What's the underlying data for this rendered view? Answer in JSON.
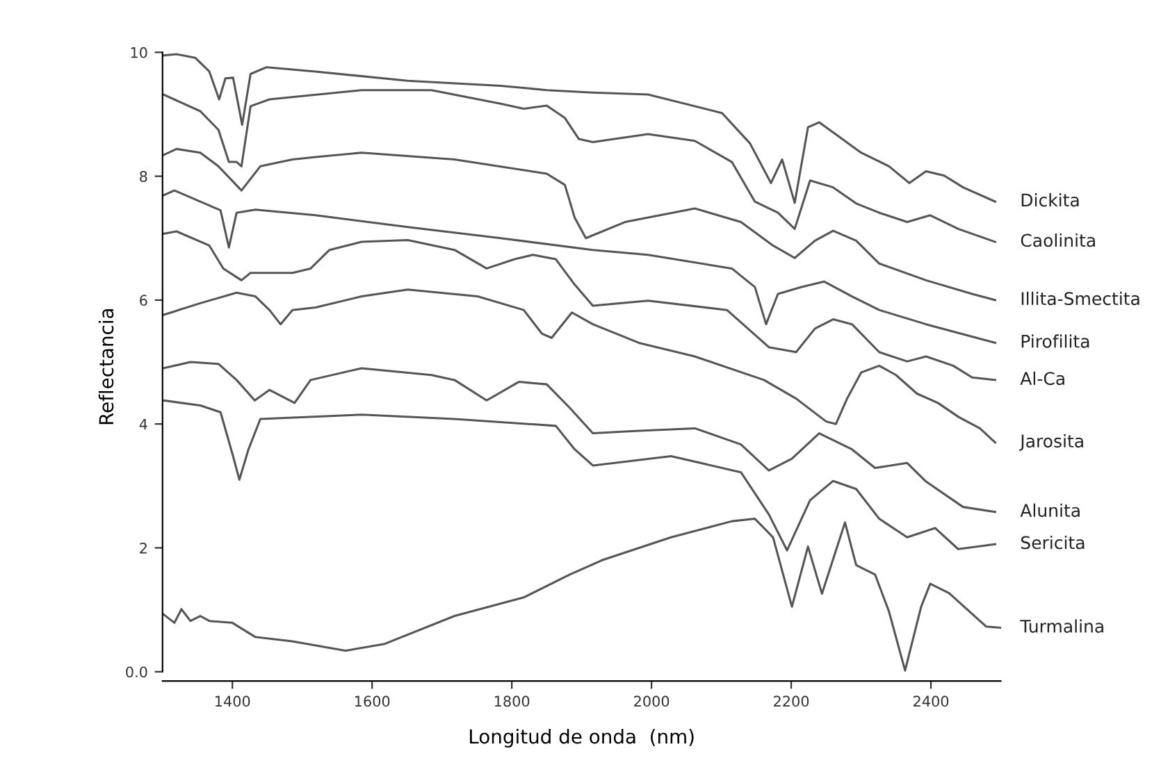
{
  "chart_data": {
    "type": "line",
    "xlabel": "Longitud de onda  (nm)",
    "ylabel": "Reflectancia",
    "xlim": [
      1300,
      2500
    ],
    "ylim": [
      -0.15,
      10
    ],
    "xticks": [
      1400,
      1600,
      1800,
      2000,
      2200,
      2400
    ],
    "yticks": [
      {
        "value": 0,
        "label": "0.0"
      },
      2,
      4,
      6,
      8,
      10
    ],
    "grid": false,
    "legend": false,
    "marker": "none",
    "line_style": "solid",
    "series": [
      {
        "name": "Dickita",
        "color": "#555555",
        "x": [
          1301,
          1320,
          1347,
          1367,
          1381,
          1390,
          1401,
          1414,
          1426,
          1449,
          1519,
          1651,
          1784,
          1850,
          1916,
          1995,
          2101,
          2141,
          2171,
          2187,
          2205,
          2224,
          2240,
          2273,
          2300,
          2340,
          2369,
          2393,
          2419,
          2446,
          2492
        ],
        "values": [
          9.95,
          9.97,
          9.91,
          9.69,
          9.24,
          9.58,
          9.59,
          8.83,
          9.65,
          9.76,
          9.69,
          9.54,
          9.46,
          9.39,
          9.35,
          9.32,
          9.02,
          8.53,
          7.89,
          8.27,
          7.57,
          8.79,
          8.87,
          8.6,
          8.38,
          8.16,
          7.89,
          8.08,
          8.01,
          7.82,
          7.59
        ]
      },
      {
        "name": "Caolinita",
        "color": "#555555",
        "x": [
          1301,
          1354,
          1380,
          1395,
          1406,
          1413,
          1426,
          1453,
          1585,
          1685,
          1784,
          1817,
          1850,
          1876,
          1896,
          1916,
          1995,
          2062,
          2115,
          2148,
          2181,
          2205,
          2227,
          2260,
          2293,
          2326,
          2366,
          2399,
          2439,
          2492
        ],
        "values": [
          9.32,
          9.05,
          8.75,
          8.23,
          8.23,
          8.16,
          9.13,
          9.24,
          9.39,
          9.39,
          9.17,
          9.09,
          9.14,
          8.94,
          8.6,
          8.55,
          8.68,
          8.57,
          8.23,
          7.59,
          7.41,
          7.15,
          7.93,
          7.82,
          7.56,
          7.41,
          7.26,
          7.37,
          7.15,
          6.94
        ]
      },
      {
        "name": "Illita-Smectita",
        "color": "#555555",
        "x": [
          1301,
          1320,
          1354,
          1380,
          1413,
          1440,
          1486,
          1519,
          1585,
          1718,
          1850,
          1876,
          1890,
          1906,
          1962,
          2062,
          2128,
          2174,
          2205,
          2234,
          2260,
          2293,
          2326,
          2393,
          2459,
          2492
        ],
        "values": [
          8.34,
          8.44,
          8.38,
          8.16,
          7.77,
          8.16,
          8.27,
          8.31,
          8.38,
          8.27,
          8.04,
          7.86,
          7.33,
          7.0,
          7.26,
          7.48,
          7.26,
          6.88,
          6.68,
          6.96,
          7.12,
          6.96,
          6.59,
          6.32,
          6.1,
          6.0
        ]
      },
      {
        "name": "Pirofilita",
        "color": "#555555",
        "x": [
          1301,
          1317,
          1354,
          1383,
          1395,
          1406,
          1433,
          1519,
          1651,
          1784,
          1916,
          1995,
          2115,
          2148,
          2164,
          2181,
          2214,
          2247,
          2287,
          2326,
          2393,
          2492
        ],
        "values": [
          7.69,
          7.77,
          7.59,
          7.45,
          6.85,
          7.41,
          7.46,
          7.37,
          7.18,
          7.0,
          6.81,
          6.73,
          6.51,
          6.21,
          5.61,
          6.1,
          6.21,
          6.3,
          6.06,
          5.84,
          5.61,
          5.31
        ]
      },
      {
        "name": "Al-Ca",
        "color": "#555555",
        "x": [
          1301,
          1320,
          1367,
          1387,
          1413,
          1426,
          1486,
          1512,
          1539,
          1585,
          1651,
          1718,
          1764,
          1804,
          1830,
          1863,
          1890,
          1916,
          1995,
          2108,
          2168,
          2207,
          2234,
          2260,
          2287,
          2326,
          2366,
          2393,
          2432,
          2459,
          2492
        ],
        "values": [
          7.07,
          7.11,
          6.88,
          6.51,
          6.32,
          6.44,
          6.44,
          6.51,
          6.81,
          6.94,
          6.97,
          6.81,
          6.51,
          6.66,
          6.73,
          6.66,
          6.25,
          5.91,
          5.99,
          5.84,
          5.24,
          5.16,
          5.54,
          5.69,
          5.61,
          5.16,
          5.01,
          5.09,
          4.94,
          4.75,
          4.71
        ]
      },
      {
        "name": "Jarosita",
        "color": "#555555",
        "x": [
          1301,
          1354,
          1406,
          1433,
          1453,
          1469,
          1486,
          1519,
          1585,
          1651,
          1751,
          1817,
          1843,
          1857,
          1886,
          1916,
          1982,
          2062,
          2161,
          2207,
          2250,
          2264,
          2280,
          2300,
          2326,
          2350,
          2380,
          2410,
          2440,
          2470,
          2492
        ],
        "values": [
          5.76,
          5.95,
          6.12,
          6.06,
          5.84,
          5.61,
          5.84,
          5.88,
          6.06,
          6.17,
          6.06,
          5.84,
          5.46,
          5.39,
          5.8,
          5.61,
          5.31,
          5.09,
          4.71,
          4.41,
          4.04,
          4.0,
          4.41,
          4.83,
          4.94,
          4.79,
          4.49,
          4.34,
          4.11,
          3.93,
          3.7
        ]
      },
      {
        "name": "Alunita",
        "color": "#555555",
        "x": [
          1301,
          1340,
          1380,
          1406,
          1432,
          1453,
          1489,
          1512,
          1585,
          1685,
          1718,
          1764,
          1810,
          1850,
          1883,
          1916,
          1982,
          2062,
          2128,
          2168,
          2201,
          2240,
          2287,
          2320,
          2366,
          2393,
          2446,
          2492
        ],
        "values": [
          4.9,
          5.0,
          4.97,
          4.71,
          4.38,
          4.55,
          4.34,
          4.71,
          4.9,
          4.79,
          4.71,
          4.38,
          4.68,
          4.64,
          4.26,
          3.85,
          3.89,
          3.93,
          3.67,
          3.25,
          3.44,
          3.85,
          3.59,
          3.29,
          3.37,
          3.07,
          2.66,
          2.58
        ]
      },
      {
        "name": "Sericita",
        "color": "#555555",
        "x": [
          1301,
          1354,
          1383,
          1400,
          1410,
          1423,
          1440,
          1585,
          1718,
          1863,
          1890,
          1916,
          2028,
          2128,
          2168,
          2194,
          2227,
          2260,
          2293,
          2326,
          2366,
          2406,
          2439,
          2492
        ],
        "values": [
          4.38,
          4.3,
          4.19,
          3.52,
          3.1,
          3.59,
          4.08,
          4.15,
          4.08,
          3.97,
          3.59,
          3.33,
          3.48,
          3.22,
          2.54,
          1.96,
          2.77,
          3.08,
          2.95,
          2.47,
          2.17,
          2.32,
          1.98,
          2.06
        ]
      },
      {
        "name": "Turmalina",
        "color": "#555555",
        "x": [
          1301,
          1317,
          1327,
          1340,
          1354,
          1367,
          1400,
          1433,
          1486,
          1562,
          1618,
          1718,
          1817,
          1883,
          1929,
          2028,
          2115,
          2148,
          2174,
          2201,
          2224,
          2244,
          2277,
          2293,
          2320,
          2340,
          2363,
          2386,
          2399,
          2426,
          2479,
          2499
        ],
        "values": [
          0.93,
          0.79,
          1.01,
          0.82,
          0.9,
          0.82,
          0.79,
          0.56,
          0.49,
          0.34,
          0.45,
          0.9,
          1.2,
          1.57,
          1.8,
          2.17,
          2.43,
          2.47,
          2.17,
          1.05,
          2.02,
          1.26,
          2.41,
          1.72,
          1.57,
          0.97,
          0.02,
          1.05,
          1.42,
          1.27,
          0.73,
          0.71
        ]
      }
    ]
  }
}
